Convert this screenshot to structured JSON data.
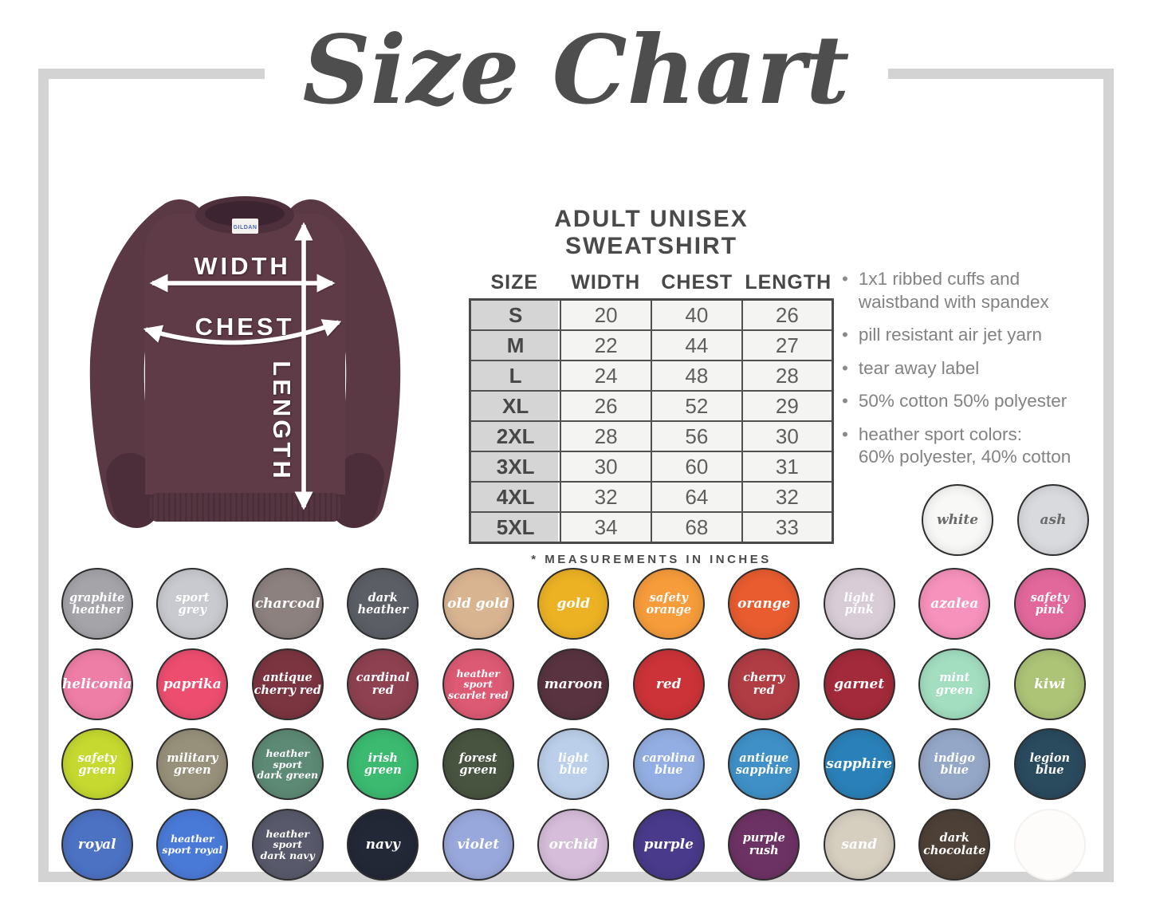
{
  "title": "Size Chart",
  "sweatshirt_diagram": {
    "labels": {
      "width": "WIDTH",
      "chest": "CHEST",
      "length": "LENGTH"
    },
    "tag_text": "GILDAN",
    "shirt_color": "#5e3b47"
  },
  "size_chart": {
    "heading": "ADULT UNISEX SWEATSHIRT",
    "columns": [
      "SIZE",
      "WIDTH",
      "CHEST",
      "LENGTH"
    ],
    "rows": [
      {
        "size": "S",
        "width": "20",
        "chest": "40",
        "length": "26"
      },
      {
        "size": "M",
        "width": "22",
        "chest": "44",
        "length": "27"
      },
      {
        "size": "L",
        "width": "24",
        "chest": "48",
        "length": "28"
      },
      {
        "size": "XL",
        "width": "26",
        "chest": "52",
        "length": "29"
      },
      {
        "size": "2XL",
        "width": "28",
        "chest": "56",
        "length": "30"
      },
      {
        "size": "3XL",
        "width": "30",
        "chest": "60",
        "length": "31"
      },
      {
        "size": "4XL",
        "width": "32",
        "chest": "64",
        "length": "32"
      },
      {
        "size": "5XL",
        "width": "34",
        "chest": "68",
        "length": "33"
      }
    ],
    "footnote": "* MEASUREMENTS IN INCHES"
  },
  "features": [
    "1x1 ribbed cuffs and\nwaistband with spandex",
    "pill resistant air jet yarn",
    "tear away label",
    "50% cotton 50% polyester",
    "heather sport colors:\n60% polyester, 40% cotton"
  ],
  "colors": {
    "header_row": [
      {
        "name": "white",
        "hex": "#f8f8f7",
        "label_color": "#6a6a6a"
      },
      {
        "name": "ash",
        "hex": "#d8dade",
        "label_color": "#6a6a6a"
      }
    ],
    "grid": [
      [
        {
          "name": "graphite\nheather",
          "hex": "#a5a4a9"
        },
        {
          "name": "sport\ngrey",
          "hex": "#c8cacf"
        },
        {
          "name": "charcoal",
          "hex": "#8c817f"
        },
        {
          "name": "dark\nheather",
          "hex": "#5c5e66"
        },
        {
          "name": "old gold",
          "hex": "#d9b491"
        },
        {
          "name": "gold",
          "hex": "#ecb224"
        },
        {
          "name": "safety\norange",
          "hex": "#f69c3b"
        },
        {
          "name": "orange",
          "hex": "#e85c30"
        },
        {
          "name": "light\npink",
          "hex": "#d8ccd6"
        },
        {
          "name": "azalea",
          "hex": "#f692bc"
        },
        {
          "name": "safety\npink",
          "hex": "#e2689b"
        }
      ],
      [
        {
          "name": "heliconia",
          "hex": "#ef7ea7"
        },
        {
          "name": "paprika",
          "hex": "#ed4e70"
        },
        {
          "name": "antique\ncherry red",
          "hex": "#7b3540"
        },
        {
          "name": "cardinal\nred",
          "hex": "#8e4150"
        },
        {
          "name": "heather sport\nscarlet red",
          "hex": "#dc5a73"
        },
        {
          "name": "maroon",
          "hex": "#593340"
        },
        {
          "name": "red",
          "hex": "#cb3338"
        },
        {
          "name": "cherry\nred",
          "hex": "#b03c44"
        },
        {
          "name": "garnet",
          "hex": "#a32a3a"
        },
        {
          "name": "mint\ngreen",
          "hex": "#a3dec1"
        },
        {
          "name": "kiwi",
          "hex": "#adc376"
        }
      ],
      [
        {
          "name": "safety\ngreen",
          "hex": "#c5d930"
        },
        {
          "name": "military\ngreen",
          "hex": "#97907a"
        },
        {
          "name": "heather sport\ndark green",
          "hex": "#5d8a74"
        },
        {
          "name": "irish\ngreen",
          "hex": "#3bba70"
        },
        {
          "name": "forest\ngreen",
          "hex": "#48543f"
        },
        {
          "name": "light\nblue",
          "hex": "#bbcfea"
        },
        {
          "name": "carolina\nblue",
          "hex": "#93aee2"
        },
        {
          "name": "antique\nsapphire",
          "hex": "#3f90c7"
        },
        {
          "name": "sapphire",
          "hex": "#2a80b8"
        },
        {
          "name": "indigo\nblue",
          "hex": "#95a7c7"
        },
        {
          "name": "legion blue",
          "hex": "#2a4a5e"
        }
      ],
      [
        {
          "name": "royal",
          "hex": "#4c72c4"
        },
        {
          "name": "heather\nsport royal",
          "hex": "#4a7ad8"
        },
        {
          "name": "heather sport\ndark navy",
          "hex": "#58596a"
        },
        {
          "name": "navy",
          "hex": "#232837"
        },
        {
          "name": "violet",
          "hex": "#99a8dc"
        },
        {
          "name": "orchid",
          "hex": "#d6bdda"
        },
        {
          "name": "purple",
          "hex": "#493a8b"
        },
        {
          "name": "purple rush",
          "hex": "#6d3264"
        },
        {
          "name": "sand",
          "hex": "#d6cfc0"
        },
        {
          "name": "dark\nchocolate",
          "hex": "#4d4037"
        },
        {
          "name": "",
          "hex": "#fdfcfb",
          "ghost": true
        }
      ]
    ]
  }
}
